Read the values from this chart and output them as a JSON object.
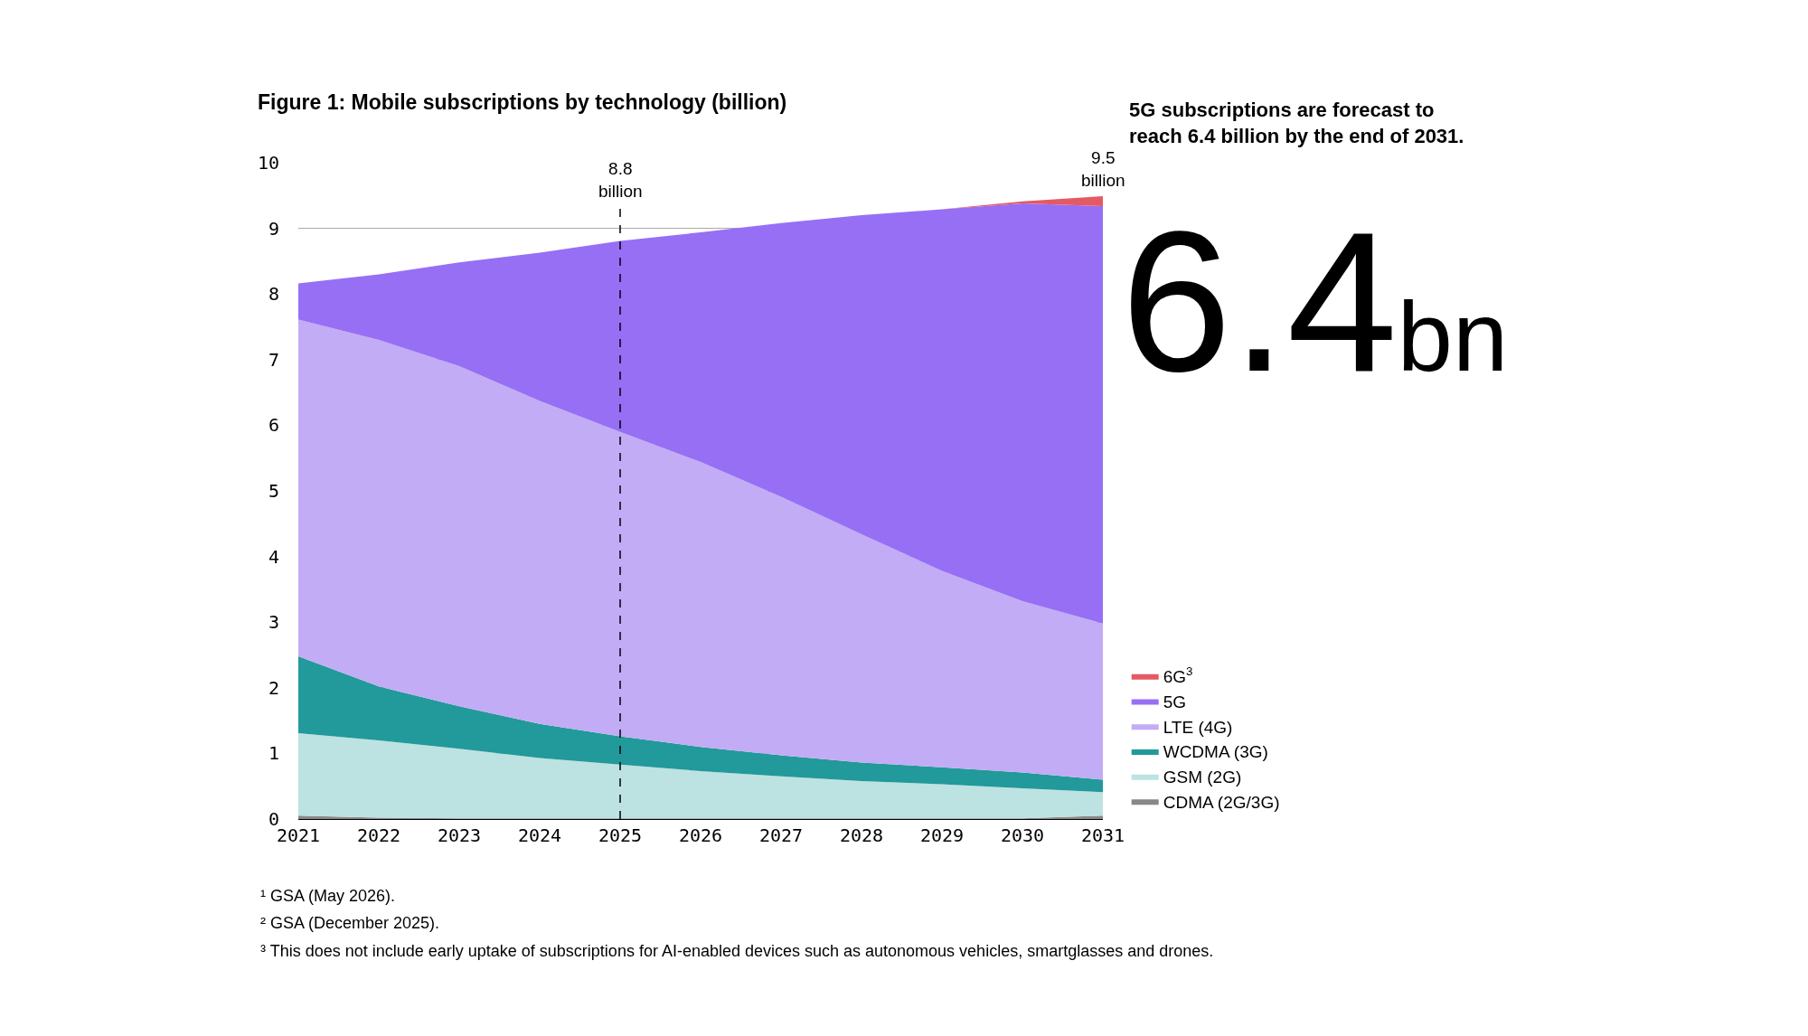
{
  "chart_data": {
    "type": "area",
    "stacked": true,
    "title": "Figure 1: Mobile subscriptions by technology (billion)",
    "x": [
      2021,
      2022,
      2023,
      2024,
      2025,
      2026,
      2027,
      2028,
      2029,
      2030,
      2031
    ],
    "xlim": [
      2021,
      2031
    ],
    "xticks": [
      2021,
      2022,
      2023,
      2024,
      2025,
      2026,
      2027,
      2028,
      2029,
      2030,
      2031
    ],
    "ylim": [
      0,
      10
    ],
    "yticks": [
      0,
      1,
      2,
      3,
      4,
      5,
      6,
      7,
      8,
      9,
      10
    ],
    "grid": "y",
    "legend": "bottom right",
    "series": [
      {
        "name": "CDMA (2G/3G)",
        "color": "#888888",
        "values": [
          0.05,
          0.02,
          0.01,
          0.01,
          0.01,
          0.01,
          0.01,
          0.01,
          0.01,
          0.01,
          0.05
        ]
      },
      {
        "name": "GSM (2G)",
        "color": "#bde2e2",
        "values": [
          1.26,
          1.18,
          1.06,
          0.92,
          0.82,
          0.72,
          0.64,
          0.57,
          0.52,
          0.46,
          0.36
        ]
      },
      {
        "name": "WCDMA (3G)",
        "color": "#22999a",
        "values": [
          1.17,
          0.82,
          0.65,
          0.52,
          0.43,
          0.37,
          0.32,
          0.28,
          0.26,
          0.24,
          0.19
        ]
      },
      {
        "name": "LTE (4G)",
        "color": "#c2acf5",
        "values": [
          5.13,
          5.28,
          5.18,
          4.92,
          4.64,
          4.34,
          3.94,
          3.48,
          2.99,
          2.61,
          2.38
        ]
      },
      {
        "name": "5G",
        "color": "#976ff5",
        "values": [
          0.55,
          1.0,
          1.58,
          2.26,
          2.91,
          3.5,
          4.17,
          4.86,
          5.51,
          6.06,
          6.36
        ]
      },
      {
        "name": "6G$^{3}$",
        "color": "#e35a65",
        "values": [
          0,
          0,
          0,
          0,
          0,
          0,
          0,
          0,
          0,
          0.03,
          0.15
        ]
      }
    ],
    "ref_lines": [
      {
        "axis": "x",
        "value": 2025,
        "label": "8.8 billion",
        "line_style": "dashed",
        "color": "#000000"
      }
    ],
    "annotations": [
      "5G subscriptions are forecast to reach 6.4 billion by the end of 2031.",
      "6.4bn",
      {
        "text": "9.5 billion",
        "x": 2031,
        "y": 9.5
      },
      "¹ GSA (May 2026).",
      "² GSA (December 2025).",
      "³ This does not include early uptake of subscriptions for AI-enabled devices such as autonomous vehicles, smartglasses and drones."
    ]
  }
}
